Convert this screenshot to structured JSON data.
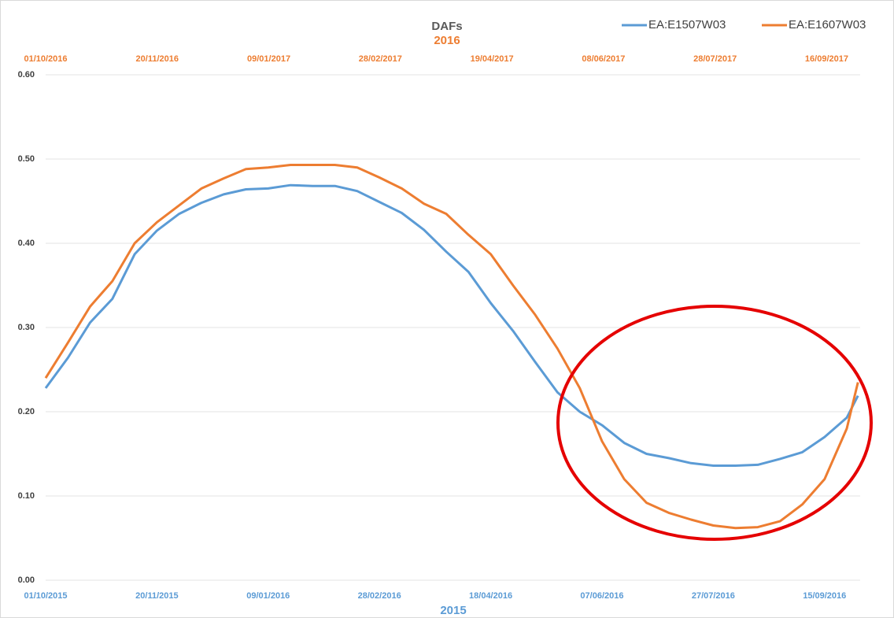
{
  "chart_data": {
    "type": "line",
    "title": "DAFs",
    "subtitle": "2016",
    "xlabel": "2015",
    "x": [
      "2015-10-01",
      "2015-10-11",
      "2015-10-21",
      "2015-10-31",
      "2015-11-10",
      "2015-11-20",
      "2015-11-30",
      "2015-12-10",
      "2015-12-20",
      "2015-12-30",
      "2016-01-09",
      "2016-01-19",
      "2016-01-29",
      "2016-02-08",
      "2016-02-18",
      "2016-02-28",
      "2016-03-09",
      "2016-03-19",
      "2016-03-29",
      "2016-04-08",
      "2016-04-18",
      "2016-04-28",
      "2016-05-08",
      "2016-05-18",
      "2016-05-28",
      "2016-06-07",
      "2016-06-17",
      "2016-06-27",
      "2016-07-07",
      "2016-07-17",
      "2016-07-27",
      "2016-08-06",
      "2016-08-16",
      "2016-08-26",
      "2016-09-05",
      "2016-09-15",
      "2016-09-25",
      "2016-09-30"
    ],
    "series": [
      {
        "name": "EA:E1507W03",
        "color": "#5b9bd5",
        "values": [
          0.228,
          0.264,
          0.306,
          0.334,
          0.387,
          0.415,
          0.435,
          0.448,
          0.458,
          0.464,
          0.465,
          0.469,
          0.468,
          0.468,
          0.462,
          0.449,
          0.436,
          0.416,
          0.39,
          0.366,
          0.329,
          0.296,
          0.259,
          0.223,
          0.2,
          0.184,
          0.163,
          0.15,
          0.145,
          0.139,
          0.136,
          0.136,
          0.137,
          0.144,
          0.152,
          0.17,
          0.193,
          0.219
        ]
      },
      {
        "name": "EA:E1607W03",
        "color": "#ed7d31",
        "values": [
          0.24,
          0.282,
          0.325,
          0.355,
          0.4,
          0.425,
          0.445,
          0.465,
          0.477,
          0.488,
          0.49,
          0.493,
          0.493,
          0.493,
          0.49,
          0.478,
          0.465,
          0.447,
          0.435,
          0.41,
          0.387,
          0.35,
          0.315,
          0.275,
          0.228,
          0.165,
          0.12,
          0.092,
          0.08,
          0.072,
          0.065,
          0.062,
          0.063,
          0.07,
          0.09,
          0.12,
          0.18,
          0.235
        ]
      }
    ],
    "xlim": [
      "2015-10-01",
      "2016-10-01"
    ],
    "xticks": [
      {
        "value": "2015-10-01",
        "label": "01/10/2015"
      },
      {
        "value": "2015-11-20",
        "label": "20/11/2015"
      },
      {
        "value": "2016-01-09",
        "label": "09/01/2016"
      },
      {
        "value": "2016-02-28",
        "label": "28/02/2016"
      },
      {
        "value": "2016-04-18",
        "label": "18/04/2016"
      },
      {
        "value": "2016-06-07",
        "label": "07/06/2016"
      },
      {
        "value": "2016-07-27",
        "label": "27/07/2016"
      },
      {
        "value": "2016-09-15",
        "label": "15/09/2016"
      }
    ],
    "x2lim": [
      "2016-10-01",
      "2017-10-01"
    ],
    "x2ticks": [
      {
        "value": "2016-10-01",
        "label": "01/10/2016"
      },
      {
        "value": "2016-11-20",
        "label": "20/11/2016"
      },
      {
        "value": "2017-01-09",
        "label": "09/01/2017"
      },
      {
        "value": "2017-02-28",
        "label": "28/02/2017"
      },
      {
        "value": "2017-04-19",
        "label": "19/04/2017"
      },
      {
        "value": "2017-06-08",
        "label": "08/06/2017"
      },
      {
        "value": "2017-07-28",
        "label": "28/07/2017"
      },
      {
        "value": "2017-09-16",
        "label": "16/09/2017"
      }
    ],
    "ylim": [
      0,
      0.6
    ],
    "yticks": [
      {
        "value": 0,
        "label": "0.00"
      },
      {
        "value": 0.1,
        "label": "0.10"
      },
      {
        "value": 0.2,
        "label": "0.20"
      },
      {
        "value": 0.3,
        "label": "0.30"
      },
      {
        "value": 0.4,
        "label": "0.40"
      },
      {
        "value": 0.5,
        "label": "0.50"
      },
      {
        "value": 0.6,
        "label": "0.60"
      }
    ],
    "grid": true,
    "legend": "top-right"
  }
}
